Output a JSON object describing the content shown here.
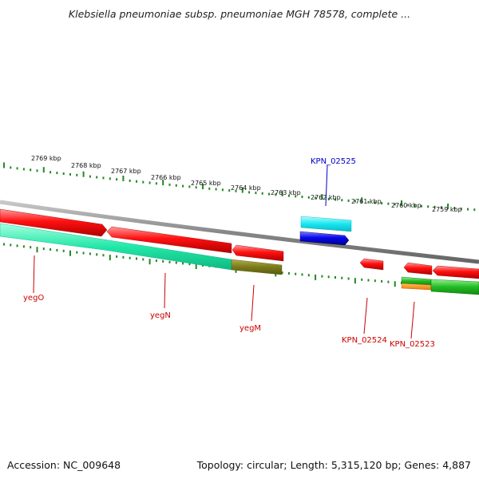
{
  "title": "Klebsiella pneumoniae subsp. pneumoniae MGH 78578, complete ...",
  "ticks": [
    "2769 kbp",
    "2768 kbp",
    "2767 kbp",
    "2766 kbp",
    "2765 kbp",
    "2764 kbp",
    "2763 kbp",
    "2762 kbp",
    "2761 kbp",
    "2760 kbp",
    "2759 kbp"
  ],
  "genes": [
    {
      "name": "KPN_02525",
      "color": "#0000c8"
    },
    {
      "name": "yegO",
      "color": "#cc0000"
    },
    {
      "name": "yegN",
      "color": "#cc0000"
    },
    {
      "name": "yegM",
      "color": "#cc0000"
    },
    {
      "name": "KPN_02524",
      "color": "#cc0000"
    },
    {
      "name": "KPN_02523",
      "color": "#cc0000"
    }
  ],
  "footer": {
    "accession": "Accession: NC_009648",
    "summary": "Topology: circular; Length: 5,315,120 bp; Genes: 4,887"
  },
  "colors": {
    "ruler": "#228822",
    "backbone": "#888888",
    "forward": "#ff1a1a",
    "reverse_cds": "#22e8a8",
    "rna": "#1aeaea",
    "blue": "#0a0af0",
    "olive": "#7a7a1a",
    "green": "#22bb22",
    "orange": "#ff8800"
  }
}
